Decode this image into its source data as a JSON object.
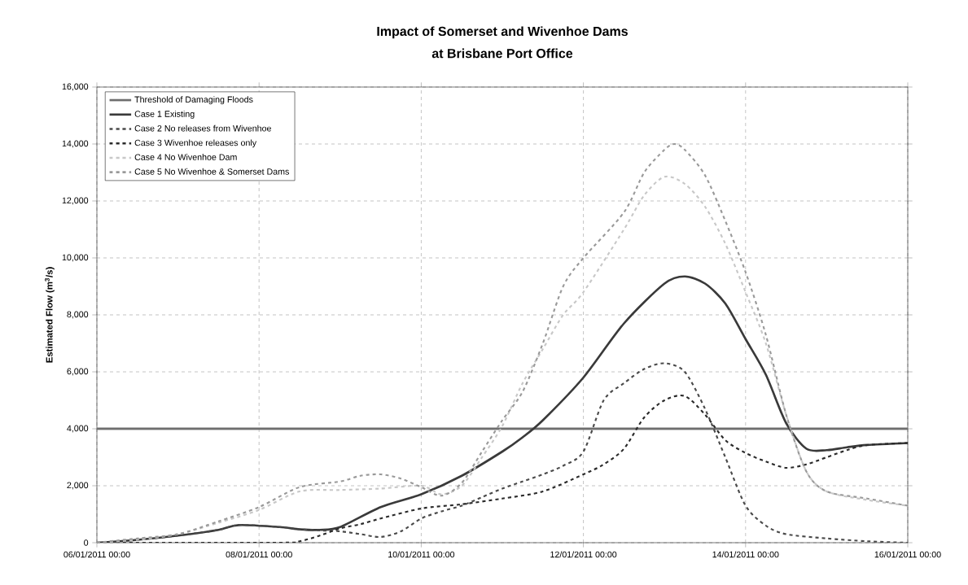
{
  "chart_data": {
    "type": "line",
    "title": "Impact of Somerset and Wivenhoe Dams",
    "subtitle": "at Brisbane Port Office",
    "ylabel": "Estimated Flow (m$^{3}$/s)",
    "xlim": [
      "2011-01-06T00:00",
      "2011-01-16T00:00"
    ],
    "xticks": [
      {
        "value": "2011-01-06T00:00",
        "label": "06/01/2011 00:00"
      },
      {
        "value": "2011-01-08T00:00",
        "label": "08/01/2011 00:00"
      },
      {
        "value": "2011-01-10T00:00",
        "label": "10/01/2011 00:00"
      },
      {
        "value": "2011-01-12T00:00",
        "label": "12/01/2011 00:00"
      },
      {
        "value": "2011-01-14T00:00",
        "label": "14/01/2011 00:00"
      },
      {
        "value": "2011-01-16T00:00",
        "label": "16/01/2011 00:00"
      }
    ],
    "ylim": [
      0,
      16000
    ],
    "yticks": [
      {
        "value": 0,
        "label": "0"
      },
      {
        "value": 2000,
        "label": "2,000"
      },
      {
        "value": 4000,
        "label": "4,000"
      },
      {
        "value": 6000,
        "label": "6,000"
      },
      {
        "value": 8000,
        "label": "8,000"
      },
      {
        "value": 10000,
        "label": "10,000"
      },
      {
        "value": 12000,
        "label": "12,000"
      },
      {
        "value": 14000,
        "label": "14,000"
      },
      {
        "value": 16000,
        "label": "16,000"
      }
    ],
    "grid": true,
    "legend": "top left",
    "marker": "none",
    "series": [
      {
        "name": "Threshold of Damaging Floods",
        "color": "#6e6e6e",
        "line_style": "solid",
        "x": [
          "2011-01-06T00:00",
          "2011-01-16T00:00"
        ],
        "values": [
          4000,
          4000
        ]
      },
      {
        "name": "Case 1 Existing",
        "color": "#3a3a3a",
        "line_style": "solid",
        "x": [
          "2011-01-06T00:00",
          "2011-01-06T12:00",
          "2011-01-07T00:00",
          "2011-01-07T12:00",
          "2011-01-07T18:00",
          "2011-01-08T06:00",
          "2011-01-08T12:00",
          "2011-01-08T18:00",
          "2011-01-09T00:00",
          "2011-01-09T12:00",
          "2011-01-10T00:00",
          "2011-01-10T12:00",
          "2011-01-11T00:00",
          "2011-01-11T06:00",
          "2011-01-11T12:00",
          "2011-01-12T00:00",
          "2011-01-12T12:00",
          "2011-01-13T00:00",
          "2011-01-13T06:00",
          "2011-01-13T12:00",
          "2011-01-13T18:00",
          "2011-01-14T00:00",
          "2011-01-14T06:00",
          "2011-01-14T12:00",
          "2011-01-14T18:00",
          "2011-01-15T00:00",
          "2011-01-15T06:00",
          "2011-01-15T12:00",
          "2011-01-16T00:00"
        ],
        "values": [
          0,
          100,
          250,
          450,
          620,
          550,
          470,
          450,
          550,
          1250,
          1700,
          2350,
          3200,
          3700,
          4300,
          5800,
          7700,
          9100,
          9350,
          9100,
          8400,
          7150,
          5900,
          4200,
          3300,
          3250,
          3350,
          3430,
          3500
        ]
      },
      {
        "name": "Case 2 No releases from Wivenhoe",
        "color": "#4a4a4a",
        "line_style": "dashed",
        "x": [
          "2011-01-06T00:00",
          "2011-01-06T12:00",
          "2011-01-07T00:00",
          "2011-01-07T12:00",
          "2011-01-07T18:00",
          "2011-01-08T06:00",
          "2011-01-08T12:00",
          "2011-01-08T18:00",
          "2011-01-09T00:00",
          "2011-01-09T06:00",
          "2011-01-09T12:00",
          "2011-01-09T18:00",
          "2011-01-10T00:00",
          "2011-01-10T06:00",
          "2011-01-10T12:00",
          "2011-01-10T18:00",
          "2011-01-11T00:00",
          "2011-01-11T06:00",
          "2011-01-11T12:00",
          "2011-01-11T18:00",
          "2011-01-12T00:00",
          "2011-01-12T06:00",
          "2011-01-12T12:00",
          "2011-01-12T18:00",
          "2011-01-13T00:00",
          "2011-01-13T06:00",
          "2011-01-13T12:00",
          "2011-01-13T18:00",
          "2011-01-14T00:00",
          "2011-01-14T06:00",
          "2011-01-14T12:00",
          "2011-01-15T00:00",
          "2011-01-15T12:00",
          "2011-01-16T00:00"
        ],
        "values": [
          0,
          100,
          250,
          450,
          620,
          550,
          470,
          430,
          400,
          300,
          200,
          400,
          850,
          1100,
          1300,
          1600,
          1900,
          2150,
          2400,
          2700,
          3200,
          5000,
          5600,
          6100,
          6300,
          6000,
          4700,
          3000,
          1300,
          600,
          300,
          150,
          50,
          0
        ]
      },
      {
        "name": "Case 3 Wivenhoe releases only",
        "color": "#2a2a2a",
        "line_style": "dashed",
        "x": [
          "2011-01-06T00:00",
          "2011-01-08T06:00",
          "2011-01-08T12:00",
          "2011-01-08T18:00",
          "2011-01-09T00:00",
          "2011-01-09T06:00",
          "2011-01-09T12:00",
          "2011-01-10T00:00",
          "2011-01-10T12:00",
          "2011-01-11T00:00",
          "2011-01-11T12:00",
          "2011-01-12T00:00",
          "2011-01-12T06:00",
          "2011-01-12T12:00",
          "2011-01-12T18:00",
          "2011-01-13T00:00",
          "2011-01-13T06:00",
          "2011-01-13T12:00",
          "2011-01-13T18:00",
          "2011-01-14T00:00",
          "2011-01-14T06:00",
          "2011-01-14T12:00",
          "2011-01-14T18:00",
          "2011-01-15T00:00",
          "2011-01-15T06:00",
          "2011-01-15T12:00",
          "2011-01-16T00:00"
        ],
        "values": [
          0,
          0,
          50,
          250,
          500,
          650,
          850,
          1200,
          1350,
          1550,
          1800,
          2400,
          2750,
          3300,
          4400,
          5000,
          5150,
          4500,
          3600,
          3150,
          2850,
          2630,
          2750,
          3000,
          3250,
          3430,
          3500
        ]
      },
      {
        "name": "Case 4 No Wivenhoe Dam",
        "color": "#c8c8c8",
        "line_style": "dashed",
        "x": [
          "2011-01-06T00:00",
          "2011-01-06T12:00",
          "2011-01-07T00:00",
          "2011-01-07T12:00",
          "2011-01-08T00:00",
          "2011-01-08T12:00",
          "2011-01-09T00:00",
          "2011-01-09T12:00",
          "2011-01-10T00:00",
          "2011-01-10T06:00",
          "2011-01-10T12:00",
          "2011-01-10T18:00",
          "2011-01-11T00:00",
          "2011-01-11T06:00",
          "2011-01-11T12:00",
          "2011-01-11T18:00",
          "2011-01-12T00:00",
          "2011-01-12T12:00",
          "2011-01-12T18:00",
          "2011-01-13T00:00",
          "2011-01-13T06:00",
          "2011-01-13T12:00",
          "2011-01-13T18:00",
          "2011-01-14T00:00",
          "2011-01-14T06:00",
          "2011-01-14T12:00",
          "2011-01-14T18:00",
          "2011-01-15T00:00",
          "2011-01-15T12:00",
          "2011-01-16T00:00"
        ],
        "values": [
          0,
          100,
          300,
          700,
          1150,
          1800,
          1850,
          1900,
          2000,
          1700,
          2000,
          3000,
          4100,
          5600,
          6800,
          8000,
          8800,
          11000,
          12200,
          12850,
          12600,
          11800,
          10500,
          8800,
          7000,
          4500,
          2500,
          1800,
          1500,
          1300
        ]
      },
      {
        "name": "Case 5 No Wivenhoe & Somerset Dams",
        "color": "#9a9a9a",
        "line_style": "dashed",
        "x": [
          "2011-01-06T00:00",
          "2011-01-06T12:00",
          "2011-01-07T00:00",
          "2011-01-07T12:00",
          "2011-01-08T00:00",
          "2011-01-08T12:00",
          "2011-01-09T00:00",
          "2011-01-09T06:00",
          "2011-01-09T12:00",
          "2011-01-09T18:00",
          "2011-01-10T00:00",
          "2011-01-10T06:00",
          "2011-01-10T12:00",
          "2011-01-10T18:00",
          "2011-01-11T00:00",
          "2011-01-11T06:00",
          "2011-01-11T12:00",
          "2011-01-11T18:00",
          "2011-01-12T00:00",
          "2011-01-12T12:00",
          "2011-01-12T18:00",
          "2011-01-13T00:00",
          "2011-01-13T03:00",
          "2011-01-13T06:00",
          "2011-01-13T12:00",
          "2011-01-13T18:00",
          "2011-01-14T00:00",
          "2011-01-14T06:00",
          "2011-01-14T12:00",
          "2011-01-14T18:00",
          "2011-01-15T00:00",
          "2011-01-15T12:00",
          "2011-01-16T00:00"
        ],
        "values": [
          0,
          150,
          300,
          750,
          1250,
          1950,
          2150,
          2350,
          2400,
          2250,
          1950,
          1650,
          2100,
          3200,
          4300,
          5300,
          7000,
          9000,
          10000,
          11600,
          13000,
          13800,
          14000,
          13800,
          12900,
          11300,
          9500,
          7300,
          4500,
          2500,
          1800,
          1550,
          1300
        ]
      }
    ]
  }
}
